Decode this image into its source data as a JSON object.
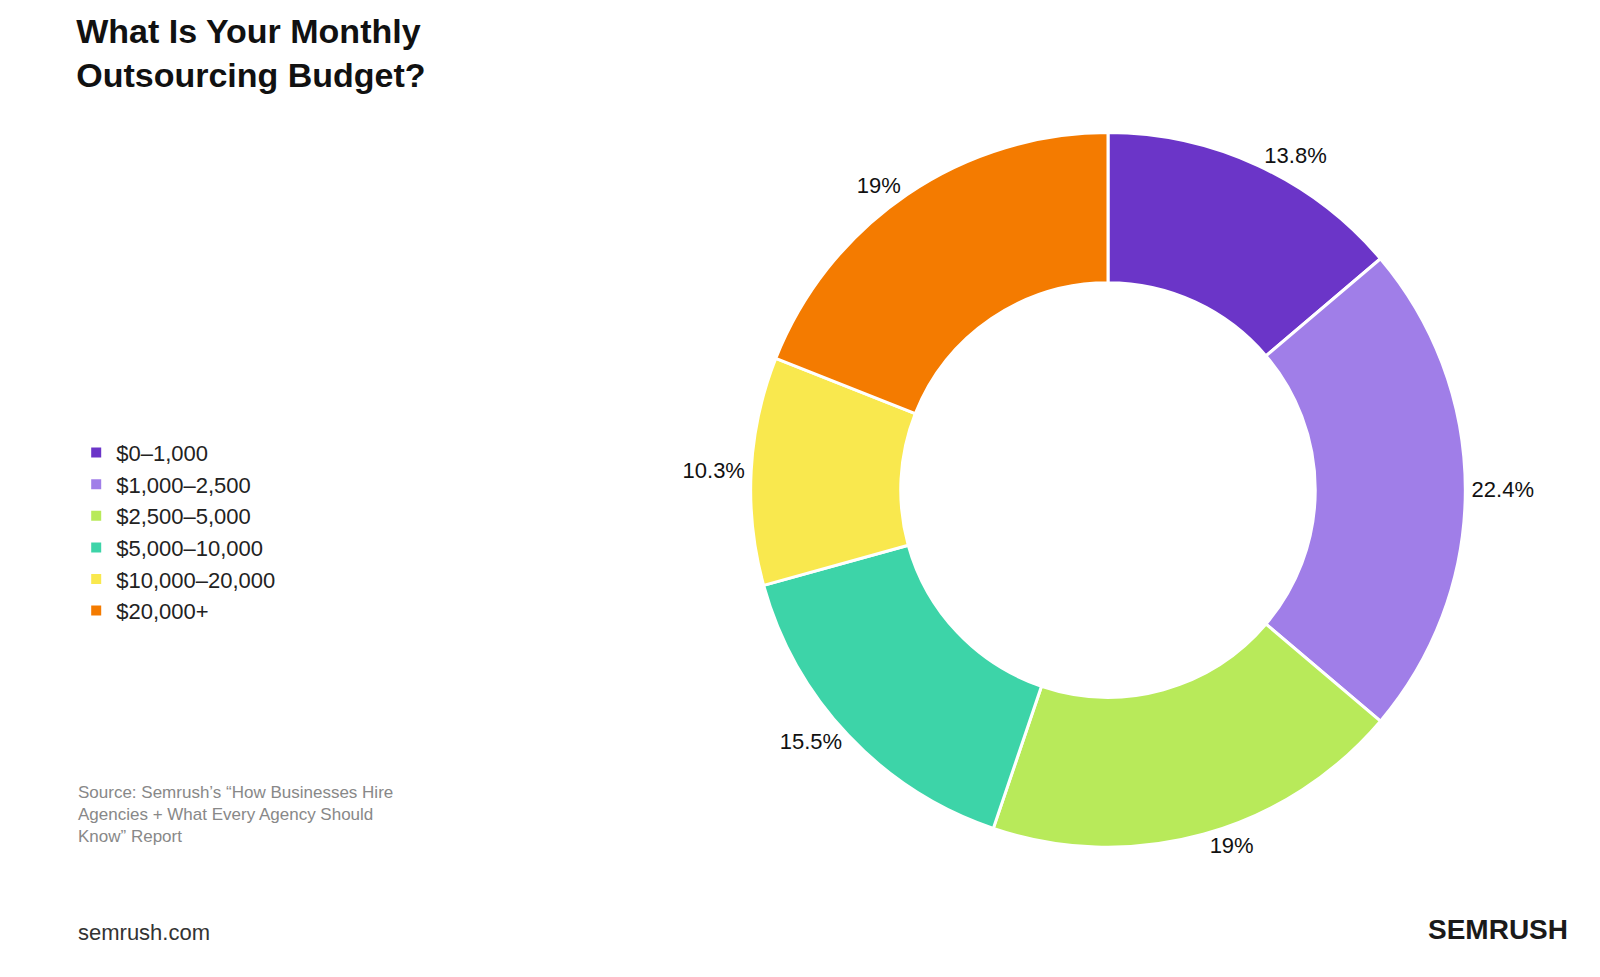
{
  "chart_data": {
    "type": "pie",
    "title": "What Is Your Monthly\nOutsourcing Budget?",
    "categories": [
      "$0–1,000",
      "$1,000–2,500",
      "$2,500–5,000",
      "$5,000–10,000",
      "$10,000–20,000",
      "$20,000+"
    ],
    "values": [
      13.8,
      22.4,
      19.0,
      15.5,
      10.3,
      19.0
    ],
    "value_labels": [
      "13.8%",
      "22.4%",
      "19%",
      "15.5%",
      "10.3%",
      "19%"
    ],
    "colors": [
      "#6B35C8",
      "#A07EE8",
      "#B8EA5A",
      "#3DD4A8",
      "#F9E84E",
      "#F47B00"
    ],
    "data_labels": true,
    "legend": "left",
    "annotations": [
      "Source: Semrush’s “How Businesses Hire\nAgencies + What Every Agency Should\nKnow” Report",
      "semrush.com",
      "SEMRUSH"
    ]
  }
}
